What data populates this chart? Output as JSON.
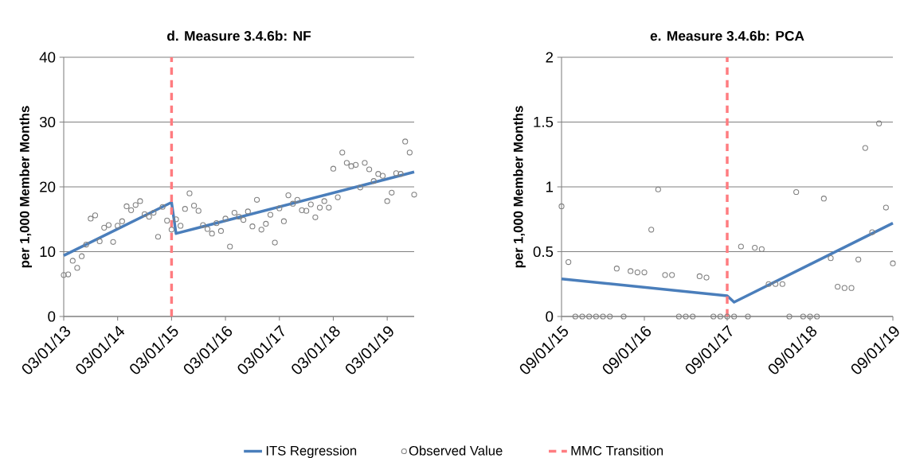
{
  "chart_data": [
    {
      "type": "scatter",
      "title": "d. Measure 3.4.6b: NF",
      "ylabel": "per 1,000 Member Months",
      "x": [
        "2013-03",
        "2013-04",
        "2013-05",
        "2013-06",
        "2013-07",
        "2013-08",
        "2013-09",
        "2013-10",
        "2013-11",
        "2013-12",
        "2014-01",
        "2014-02",
        "2014-03",
        "2014-04",
        "2014-05",
        "2014-06",
        "2014-07",
        "2014-08",
        "2014-09",
        "2014-10",
        "2014-11",
        "2014-12",
        "2015-01",
        "2015-02",
        "2015-03",
        "2015-04",
        "2015-05",
        "2015-06",
        "2015-07",
        "2015-08",
        "2015-09",
        "2015-10",
        "2015-11",
        "2015-12",
        "2016-01",
        "2016-02",
        "2016-03",
        "2016-04",
        "2016-05",
        "2016-06",
        "2016-07",
        "2016-08",
        "2016-09",
        "2016-10",
        "2016-11",
        "2016-12",
        "2017-01",
        "2017-02",
        "2017-03",
        "2017-04",
        "2017-05",
        "2017-06",
        "2017-07",
        "2017-08",
        "2017-09",
        "2017-10",
        "2017-11",
        "2017-12",
        "2018-01",
        "2018-02",
        "2018-03",
        "2018-04",
        "2018-05",
        "2018-06",
        "2018-07",
        "2018-08",
        "2018-09",
        "2018-10",
        "2018-11",
        "2018-12",
        "2019-01",
        "2019-02",
        "2019-03",
        "2019-04",
        "2019-05",
        "2019-06",
        "2019-07",
        "2019-08",
        "2019-09"
      ],
      "series": [
        {
          "name": "ITS Regression",
          "type": "line",
          "color": "#4a7ebb",
          "marker": "none",
          "line_style": "solid",
          "x": [
            "2013-03",
            "2015-03",
            "2015-04",
            "2019-09"
          ],
          "values": [
            9.4,
            17.6,
            12.8,
            22.3
          ]
        },
        {
          "name": "Observed Value",
          "color": "#808080",
          "marker": "circle",
          "values": [
            6.4,
            6.5,
            8.6,
            7.5,
            9.3,
            11.1,
            15.1,
            15.6,
            11.6,
            13.7,
            14.1,
            11.5,
            14.0,
            14.7,
            17.0,
            16.4,
            17.2,
            17.8,
            15.8,
            15.4,
            16.0,
            12.3,
            16.9,
            14.8,
            13.4,
            15.0,
            14.0,
            16.6,
            19.0,
            17.1,
            16.3,
            14.1,
            13.5,
            12.8,
            14.4,
            13.2,
            15.1,
            10.8,
            16.0,
            15.4,
            14.9,
            16.2,
            13.9,
            18.0,
            13.4,
            14.3,
            15.7,
            11.4,
            16.7,
            14.7,
            18.7,
            17.4,
            18.0,
            16.4,
            16.3,
            17.3,
            15.3,
            16.8,
            17.8,
            16.8,
            22.8,
            18.4,
            25.3,
            23.7,
            23.2,
            23.4,
            19.9,
            23.7,
            22.7,
            20.9,
            22.0,
            21.7,
            17.8,
            19.1,
            22.1,
            22.0,
            27.0,
            25.3,
            18.8
          ]
        }
      ],
      "ref_lines": [
        {
          "axis": "x",
          "value": "2015-03",
          "label": "MMC Transition",
          "color": "#ff7c80",
          "line_style": "dashed"
        }
      ],
      "xlim": [
        "2013-03-01",
        "2019-09-01"
      ],
      "xticks": [
        {
          "value": "2013-03-01",
          "label": "03/01/13"
        },
        {
          "value": "2014-03-01",
          "label": "03/01/14"
        },
        {
          "value": "2015-03-01",
          "label": "03/01/15"
        },
        {
          "value": "2016-03-01",
          "label": "03/01/16"
        },
        {
          "value": "2017-03-01",
          "label": "03/01/17"
        },
        {
          "value": "2018-03-01",
          "label": "03/01/18"
        },
        {
          "value": "2019-03-01",
          "label": "03/01/19"
        }
      ],
      "ylim": [
        0,
        40
      ],
      "yticks": [
        0,
        10,
        20,
        30,
        40
      ],
      "grid": "y",
      "legend": "bottom"
    },
    {
      "type": "scatter",
      "title": "e. Measure 3.4.6b: PCA",
      "ylabel": "per 1,000 Member Months",
      "x": [
        "2015-09",
        "2015-10",
        "2015-11",
        "2015-12",
        "2016-01",
        "2016-02",
        "2016-03",
        "2016-04",
        "2016-05",
        "2016-06",
        "2016-07",
        "2016-08",
        "2016-09",
        "2016-10",
        "2016-11",
        "2016-12",
        "2017-01",
        "2017-02",
        "2017-03",
        "2017-04",
        "2017-05",
        "2017-06",
        "2017-07",
        "2017-08",
        "2017-09",
        "2017-10",
        "2017-11",
        "2017-12",
        "2018-01",
        "2018-02",
        "2018-03",
        "2018-04",
        "2018-05",
        "2018-06",
        "2018-07",
        "2018-08",
        "2018-09",
        "2018-10",
        "2018-11",
        "2018-12",
        "2019-01",
        "2019-02",
        "2019-03",
        "2019-04",
        "2019-05",
        "2019-06",
        "2019-07",
        "2019-08",
        "2019-09"
      ],
      "series": [
        {
          "type": "line",
          "color": "#4a7ebb",
          "marker": "none",
          "line_style": "solid",
          "x": [
            "2015-09",
            "2017-09",
            "2017-10",
            "2019-09"
          ],
          "values": [
            0.29,
            0.16,
            0.11,
            0.72
          ]
        },
        {
          "color": "#808080",
          "marker": "circle",
          "values": [
            0.85,
            0.42,
            0,
            0,
            0,
            0,
            0,
            0,
            0.37,
            0,
            0.35,
            0.34,
            0.34,
            0.67,
            0.98,
            0.32,
            0.32,
            0,
            0,
            0,
            0.31,
            0.3,
            0,
            0,
            0,
            0,
            0.54,
            0,
            0.53,
            0.52,
            0.25,
            0.25,
            0.25,
            0,
            0.96,
            0,
            0,
            0,
            0.91,
            0.45,
            0.23,
            0.22,
            0.22,
            0.44,
            1.3,
            0.65,
            1.49,
            0.84,
            0.41
          ]
        }
      ],
      "ref_lines": [
        {
          "axis": "x",
          "value": "2017-09",
          "color": "#ff7c80",
          "line_style": "dashed"
        }
      ],
      "xlim": [
        "2015-09-01",
        "2019-09-01"
      ],
      "xticks": [
        {
          "value": "2015-09-01",
          "label": "09/01/15"
        },
        {
          "value": "2016-09-01",
          "label": "09/01/16"
        },
        {
          "value": "2017-09-01",
          "label": "09/01/17"
        },
        {
          "value": "2018-09-01",
          "label": "09/01/18"
        },
        {
          "value": "2019-09-01",
          "label": "09/01/19"
        }
      ],
      "ylim": [
        0,
        2
      ],
      "yticks": [
        0,
        {
          "value": 0.5,
          "label": "0.5"
        },
        1,
        {
          "value": 1.5,
          "label": "1.5"
        },
        2
      ],
      "grid": "y"
    }
  ]
}
